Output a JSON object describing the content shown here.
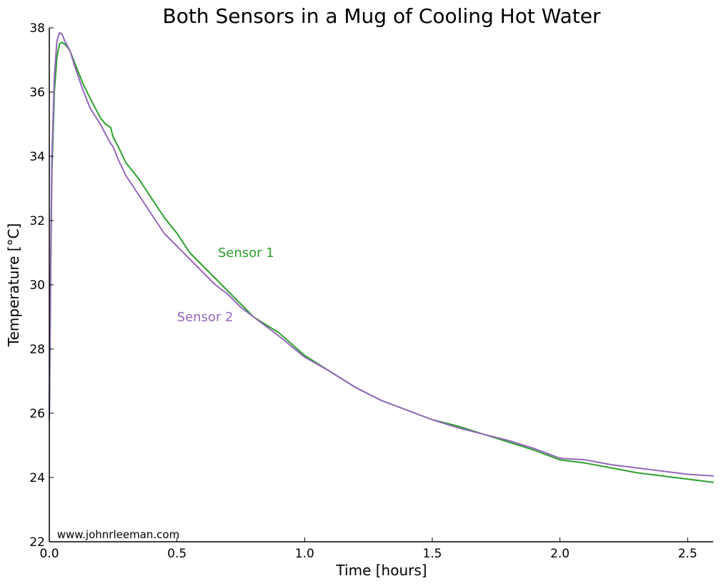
{
  "chart_data": {
    "type": "line",
    "title": "Both Sensors in a Mug of Cooling Hot Water",
    "xlabel": "Time [hours]",
    "ylabel": "Temperature [$^\\circ$C]",
    "ylabel_display": "Temperature [°C]",
    "xlim": [
      0,
      2.6
    ],
    "ylim": [
      22,
      38
    ],
    "xticks": [
      0.0,
      0.5,
      1.0,
      1.5,
      2.0,
      2.5
    ],
    "xtick_labels": [
      "0.0",
      "0.5",
      "1.0",
      "1.5",
      "2.0",
      "2.5"
    ],
    "yticks": [
      22,
      24,
      26,
      28,
      30,
      32,
      34,
      36,
      38
    ],
    "ytick_labels": [
      "22",
      "24",
      "26",
      "28",
      "30",
      "32",
      "34",
      "36",
      "38"
    ],
    "grid": false,
    "legend": "none",
    "annotations": [
      {
        "text": "Sensor 1",
        "x": 0.66,
        "y": 31.0,
        "color": "#2ca02c"
      },
      {
        "text": "Sensor 2",
        "x": 0.5,
        "y": 29.0,
        "color": "#9467bd"
      },
      {
        "text": "www.johnrleeman.com",
        "x": 0.03,
        "y": 22.25,
        "color": "#000000"
      }
    ],
    "series": [
      {
        "color": "#2ca02c",
        "x": [
          0.0,
          0.005,
          0.01,
          0.02,
          0.03,
          0.04,
          0.05,
          0.06,
          0.08,
          0.1,
          0.13,
          0.16,
          0.2,
          0.22,
          0.24,
          0.25,
          0.27,
          0.3,
          0.35,
          0.4,
          0.45,
          0.5,
          0.55,
          0.6,
          0.65,
          0.7,
          0.75,
          0.8,
          0.9,
          1.0,
          1.1,
          1.2,
          1.3,
          1.4,
          1.5,
          1.6,
          1.7,
          1.8,
          1.9,
          2.0,
          2.1,
          2.2,
          2.3,
          2.4,
          2.5,
          2.6
        ],
        "y": [
          25.8,
          30.0,
          33.5,
          36.0,
          37.1,
          37.5,
          37.55,
          37.5,
          37.3,
          36.9,
          36.3,
          35.8,
          35.2,
          35.0,
          34.9,
          34.6,
          34.3,
          33.8,
          33.3,
          32.7,
          32.1,
          31.6,
          31.0,
          30.6,
          30.2,
          29.8,
          29.4,
          29.0,
          28.5,
          27.8,
          27.3,
          26.8,
          26.4,
          26.1,
          25.8,
          25.6,
          25.35,
          25.1,
          24.85,
          24.55,
          24.45,
          24.3,
          24.15,
          24.05,
          23.95,
          23.85
        ]
      },
      {
        "color": "#9467bd",
        "x": [
          0.0,
          0.005,
          0.01,
          0.02,
          0.03,
          0.04,
          0.05,
          0.06,
          0.08,
          0.1,
          0.13,
          0.16,
          0.2,
          0.22,
          0.24,
          0.25,
          0.27,
          0.3,
          0.35,
          0.4,
          0.45,
          0.5,
          0.55,
          0.6,
          0.65,
          0.7,
          0.75,
          0.8,
          0.9,
          1.0,
          1.1,
          1.2,
          1.3,
          1.4,
          1.5,
          1.6,
          1.7,
          1.8,
          1.9,
          2.0,
          2.1,
          2.2,
          2.3,
          2.4,
          2.5,
          2.6
        ],
        "y": [
          25.8,
          30.5,
          34.0,
          36.5,
          37.6,
          37.85,
          37.8,
          37.6,
          37.3,
          36.8,
          36.1,
          35.5,
          35.0,
          34.7,
          34.4,
          34.3,
          33.9,
          33.4,
          32.8,
          32.2,
          31.6,
          31.2,
          30.8,
          30.4,
          30.0,
          29.7,
          29.3,
          29.0,
          28.4,
          27.75,
          27.3,
          26.8,
          26.4,
          26.1,
          25.8,
          25.55,
          25.35,
          25.15,
          24.9,
          24.6,
          24.55,
          24.4,
          24.3,
          24.2,
          24.1,
          24.05
        ]
      }
    ]
  }
}
